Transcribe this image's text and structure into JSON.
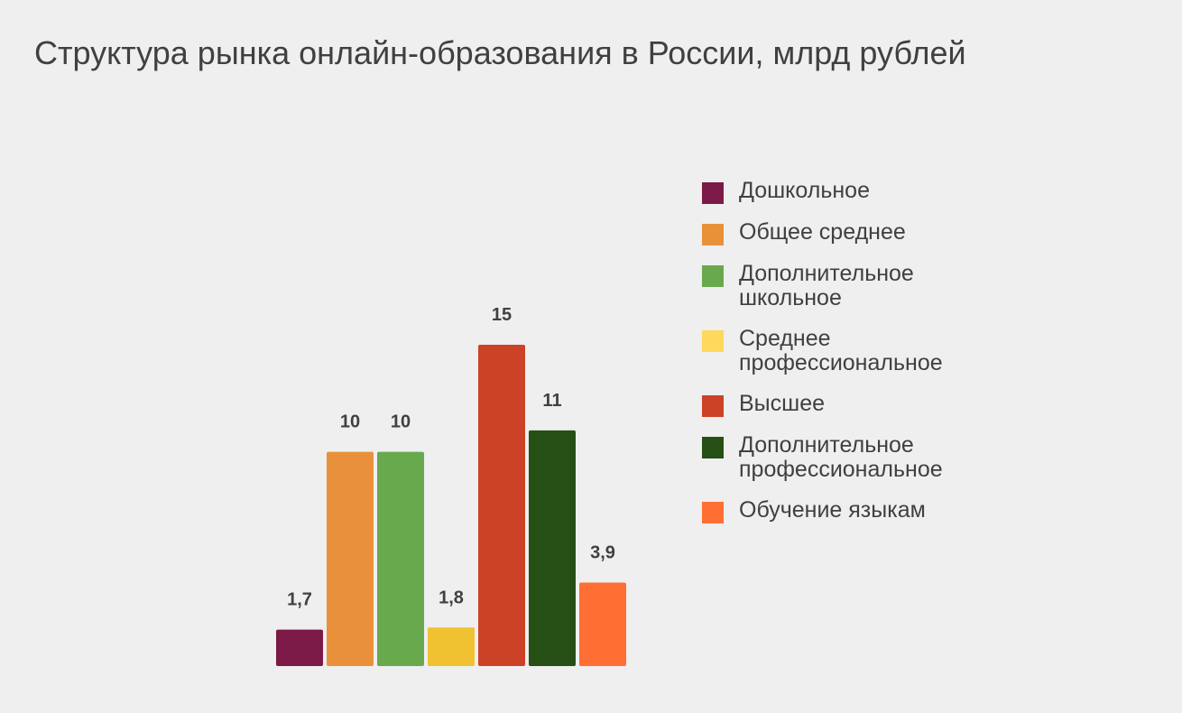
{
  "title": "Структура рынка онлайн-образования в России, млрд рублей",
  "chart_data": {
    "type": "bar",
    "title": "Структура рынка онлайн-образования в России, млрд рублей",
    "categories": [
      "Дошкольное",
      "Общее среднее",
      "Дополнительное школьное",
      "Среднее профессиональное",
      "Высшее",
      "Дополнительное профессиональное",
      "Обучение языкам"
    ],
    "values": [
      1.7,
      10,
      10,
      1.8,
      15,
      11,
      3.9
    ],
    "value_labels": [
      "1,7",
      "10",
      "10",
      "1,8",
      "15",
      "11",
      "3,9"
    ],
    "colors": [
      "#7b1a46",
      "#e8913a",
      "#68a94e",
      "#f0c232",
      "#cc4226",
      "#264f15",
      "#ff6f33"
    ],
    "ylim": [
      0,
      15
    ],
    "grid": false,
    "legend_placement": "right"
  },
  "legend": [
    {
      "label": "Дошкольное",
      "color": "#7b1a46"
    },
    {
      "label": "Общее среднее",
      "color": "#e8913a"
    },
    {
      "label": "Дополнительное школьное",
      "color": "#68a94e"
    },
    {
      "label": "Среднее профессиональное",
      "color": "#ffd85c"
    },
    {
      "label": "Высшее",
      "color": "#cc4226"
    },
    {
      "label": "Дополнительное профессиональное",
      "color": "#264f15"
    },
    {
      "label": "Обучение языкам",
      "color": "#ff6f33"
    }
  ]
}
